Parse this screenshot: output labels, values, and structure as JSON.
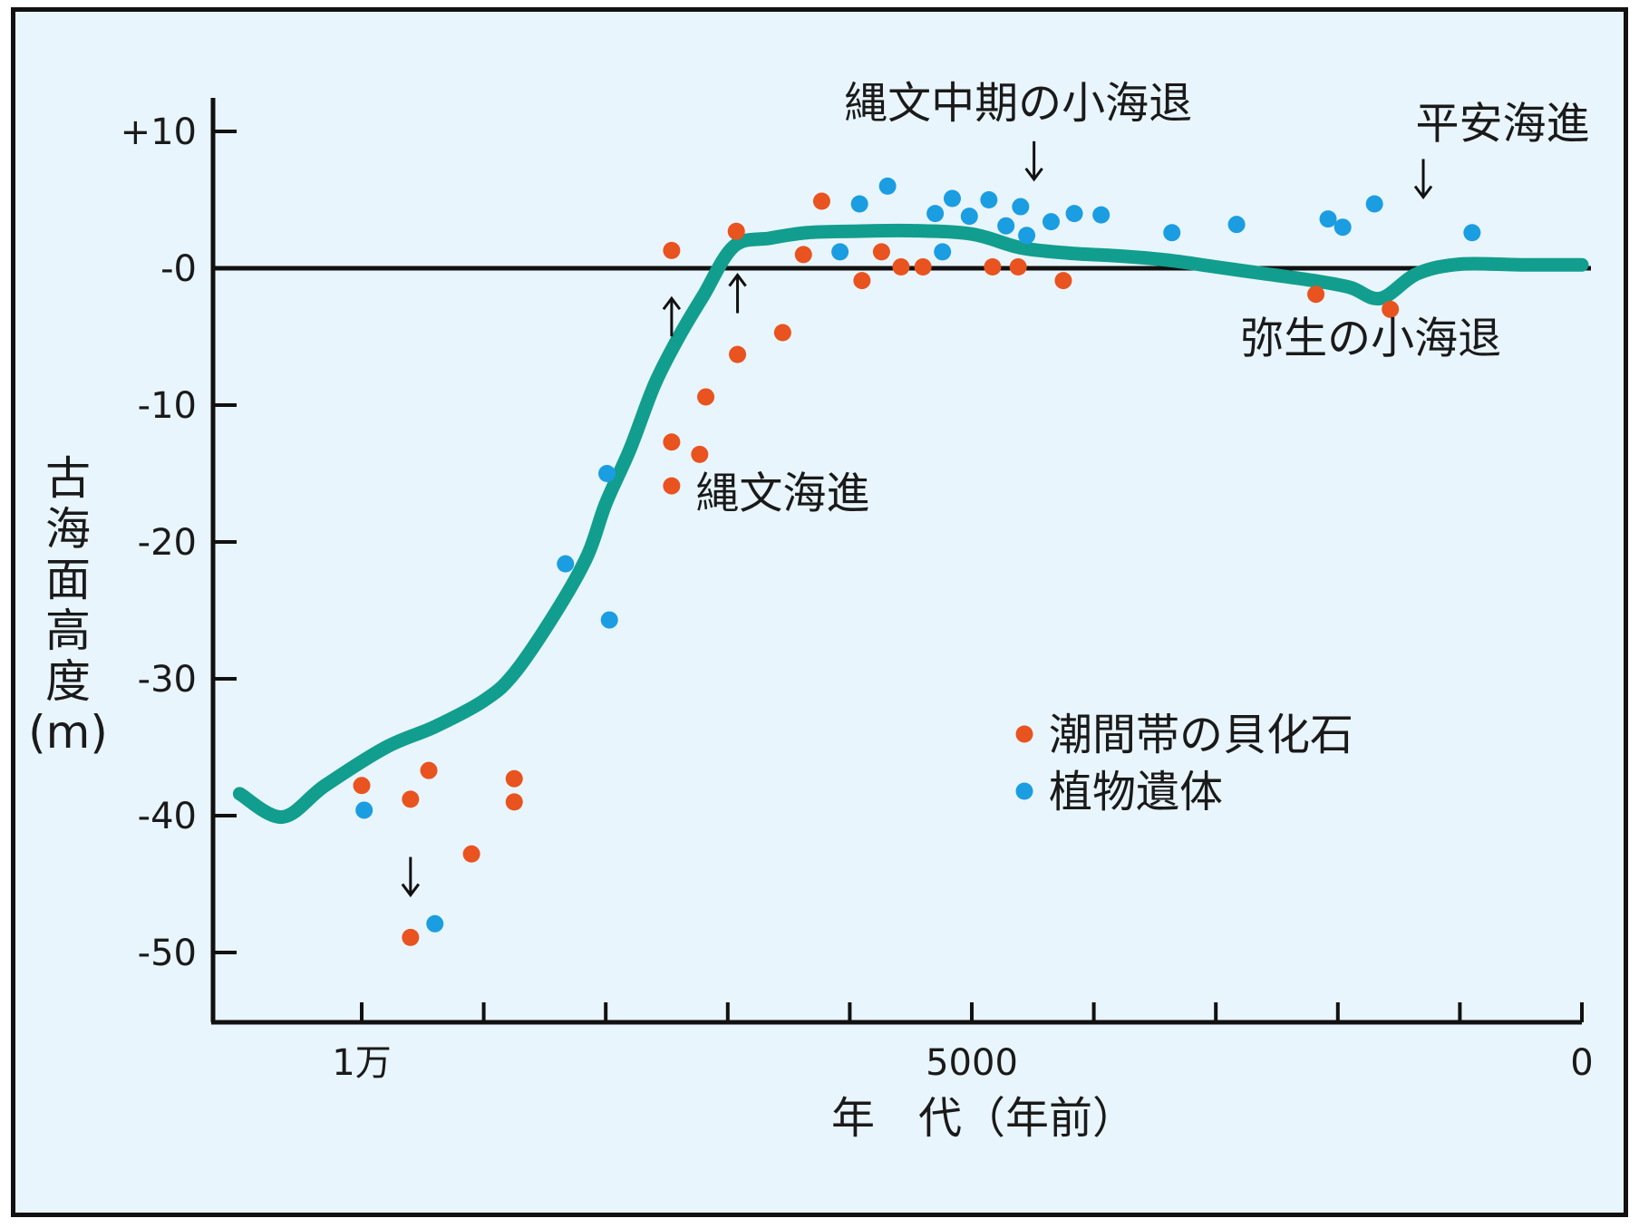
{
  "chart_data": {
    "type": "scatter",
    "ylabel": [
      "古",
      "海",
      "面",
      "高",
      "度",
      "(m)"
    ],
    "xlabel": "年　代（年前）",
    "y_ticks": [
      {
        "value": 10,
        "label": "+10"
      },
      {
        "value": 0,
        "label": "-0"
      },
      {
        "value": -10,
        "label": "-10"
      },
      {
        "value": -20,
        "label": "-20"
      },
      {
        "value": -30,
        "label": "-30"
      },
      {
        "value": -40,
        "label": "-40"
      },
      {
        "value": -50,
        "label": "-50"
      }
    ],
    "x_ticks": [
      10000,
      9000,
      8000,
      7000,
      6000,
      5000,
      4000,
      3000,
      2000,
      1000,
      0
    ],
    "x_tick_labels": [
      {
        "value": 10000,
        "label": "1万"
      },
      {
        "value": 5000,
        "label": "5000"
      },
      {
        "value": 0,
        "label": "0"
      }
    ],
    "xlim": [
      11100,
      0
    ],
    "ylim": [
      -55,
      12.5
    ],
    "reference_line_y": 0,
    "series": [
      {
        "name": "潮間帯の貝化石",
        "color": "#e8531f",
        "points": [
          [
            10000,
            -37.8
          ],
          [
            9600,
            -38.8
          ],
          [
            9450,
            -36.7
          ],
          [
            9100,
            -42.8
          ],
          [
            8750,
            -37.3
          ],
          [
            8750,
            -39.0
          ],
          [
            9600,
            -48.9
          ],
          [
            7460,
            1.3
          ],
          [
            7460,
            -12.7
          ],
          [
            7460,
            -15.9
          ],
          [
            7180,
            -9.4
          ],
          [
            7230,
            -13.6
          ],
          [
            6930,
            2.7
          ],
          [
            6920,
            -6.3
          ],
          [
            6550,
            -4.7
          ],
          [
            6380,
            1.0
          ],
          [
            6230,
            4.9
          ],
          [
            5900,
            -0.9
          ],
          [
            5740,
            1.2
          ],
          [
            5580,
            0.1
          ],
          [
            5400,
            0.1
          ],
          [
            4830,
            0.1
          ],
          [
            4620,
            0.1
          ],
          [
            4250,
            -0.9
          ],
          [
            2180,
            -1.9
          ],
          [
            1570,
            -3.0
          ]
        ]
      },
      {
        "name": "植物遺体",
        "color": "#1b9de2",
        "points": [
          [
            9980,
            -39.6
          ],
          [
            9400,
            -47.9
          ],
          [
            8330,
            -21.6
          ],
          [
            7990,
            -15.0
          ],
          [
            7970,
            -25.7
          ],
          [
            6080,
            1.2
          ],
          [
            5920,
            4.7
          ],
          [
            5690,
            6.0
          ],
          [
            5300,
            4.0
          ],
          [
            5240,
            1.2
          ],
          [
            5160,
            5.1
          ],
          [
            5020,
            3.8
          ],
          [
            4860,
            5.0
          ],
          [
            4720,
            3.1
          ],
          [
            4600,
            4.5
          ],
          [
            4550,
            2.4
          ],
          [
            4350,
            3.4
          ],
          [
            4160,
            4.0
          ],
          [
            3940,
            3.9
          ],
          [
            3360,
            2.6
          ],
          [
            2830,
            3.2
          ],
          [
            2080,
            3.6
          ],
          [
            1960,
            3.0
          ],
          [
            1700,
            4.7
          ],
          [
            900,
            2.6
          ]
        ]
      }
    ],
    "curve": {
      "color": "#119e8e",
      "points": [
        [
          11000,
          -38.4
        ],
        [
          10650,
          -40.1
        ],
        [
          10300,
          -37.8
        ],
        [
          9800,
          -35.0
        ],
        [
          9400,
          -33.5
        ],
        [
          9000,
          -31.6
        ],
        [
          8750,
          -29.6
        ],
        [
          8400,
          -25.0
        ],
        [
          8150,
          -21.0
        ],
        [
          8000,
          -17.2
        ],
        [
          7800,
          -13.2
        ],
        [
          7600,
          -8.5
        ],
        [
          7400,
          -5.0
        ],
        [
          7200,
          -2.0
        ],
        [
          6950,
          1.6
        ],
        [
          6650,
          2.2
        ],
        [
          6350,
          2.6
        ],
        [
          6000,
          2.7
        ],
        [
          5500,
          2.75
        ],
        [
          5000,
          2.5
        ],
        [
          4600,
          1.5
        ],
        [
          4200,
          1.1
        ],
        [
          3800,
          0.9
        ],
        [
          3400,
          0.6
        ],
        [
          3000,
          0.1
        ],
        [
          2600,
          -0.4
        ],
        [
          2200,
          -0.9
        ],
        [
          1900,
          -1.4
        ],
        [
          1650,
          -2.2
        ],
        [
          1350,
          -0.4
        ],
        [
          1000,
          0.3
        ],
        [
          500,
          0.25
        ],
        [
          0,
          0.25
        ]
      ]
    },
    "annotations": [
      {
        "text": "縄文中期の小海退",
        "x": 4620,
        "y": 11.0
      },
      {
        "text": "平安海進",
        "x": 650,
        "y": 9.5
      },
      {
        "text": "弥生の小海退",
        "x": 1730,
        "y": -6.2
      },
      {
        "text": "縄文海進",
        "x": 6550,
        "y": -17.5
      }
    ],
    "arrows": [
      {
        "dir": "down",
        "x": 4490,
        "y": 6.5
      },
      {
        "dir": "down",
        "x": 1300,
        "y": 5.2
      },
      {
        "dir": "up",
        "x": 7460,
        "y": -2.2
      },
      {
        "dir": "up",
        "x": 6920,
        "y": -0.5
      },
      {
        "dir": "down",
        "x": 9600,
        "y": -45.8
      }
    ],
    "legend": {
      "items": [
        {
          "label": "潮間帯の貝化石",
          "color": "#e8531f"
        },
        {
          "label": "植物遺体",
          "color": "#1b9de2"
        }
      ]
    }
  }
}
